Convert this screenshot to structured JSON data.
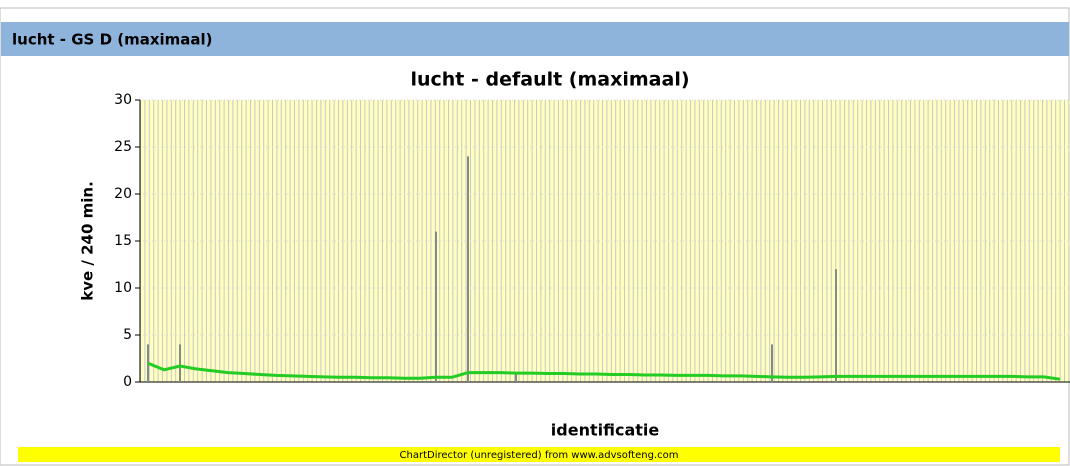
{
  "panel_title": "lucht - GS D (maximaal)",
  "chart_data": {
    "type": "bar-line",
    "title": "lucht - default (maximaal)",
    "y_label": "kve / 240 min.",
    "x_label": "identificatie",
    "categories": [
      null,
      null,
      null,
      null,
      null,
      null,
      null,
      null,
      null,
      null,
      null,
      null,
      null,
      null,
      null,
      null,
      null,
      null,
      null,
      null,
      null,
      null,
      null,
      null,
      null,
      null,
      null,
      null,
      null,
      null,
      null,
      null,
      null,
      null,
      null,
      null,
      null,
      null,
      null,
      null,
      null,
      null,
      null,
      null,
      null,
      null,
      null,
      null,
      null,
      null,
      null,
      null,
      null,
      null,
      null,
      null,
      null,
      null
    ],
    "series": [
      {
        "kind": "bar",
        "color": "#7f8c8d",
        "values": [
          4,
          null,
          4,
          null,
          null,
          null,
          null,
          null,
          null,
          null,
          null,
          null,
          null,
          null,
          null,
          null,
          null,
          null,
          16,
          null,
          24,
          null,
          null,
          1,
          null,
          null,
          null,
          null,
          null,
          null,
          null,
          null,
          null,
          null,
          null,
          null,
          null,
          null,
          null,
          4,
          null,
          null,
          null,
          12,
          null,
          null,
          null,
          null,
          null,
          null,
          null,
          null,
          null,
          null,
          null,
          null,
          null,
          null
        ]
      },
      {
        "kind": "line",
        "color": "#22cc22",
        "values": [
          2.0,
          1.3,
          1.7,
          1.4,
          1.2,
          1.0,
          0.9,
          0.8,
          0.7,
          0.65,
          0.6,
          0.55,
          0.5,
          0.5,
          0.45,
          0.45,
          0.4,
          0.4,
          0.5,
          0.5,
          1.0,
          1.0,
          1.0,
          0.95,
          0.95,
          0.9,
          0.9,
          0.85,
          0.85,
          0.8,
          0.8,
          0.75,
          0.75,
          0.7,
          0.7,
          0.7,
          0.65,
          0.65,
          0.6,
          0.55,
          0.5,
          0.5,
          0.55,
          0.6,
          0.6,
          0.6,
          0.6,
          0.6,
          0.6,
          0.6,
          0.6,
          0.6,
          0.6,
          0.6,
          0.6,
          0.55,
          0.55,
          0.3
        ]
      }
    ],
    "ylim": [
      0,
      30
    ],
    "yticks": [
      0,
      5,
      10,
      15,
      20,
      25,
      30
    ],
    "grid": true
  },
  "footer": "ChartDirector (unregistered) from www.advsofteng.com"
}
